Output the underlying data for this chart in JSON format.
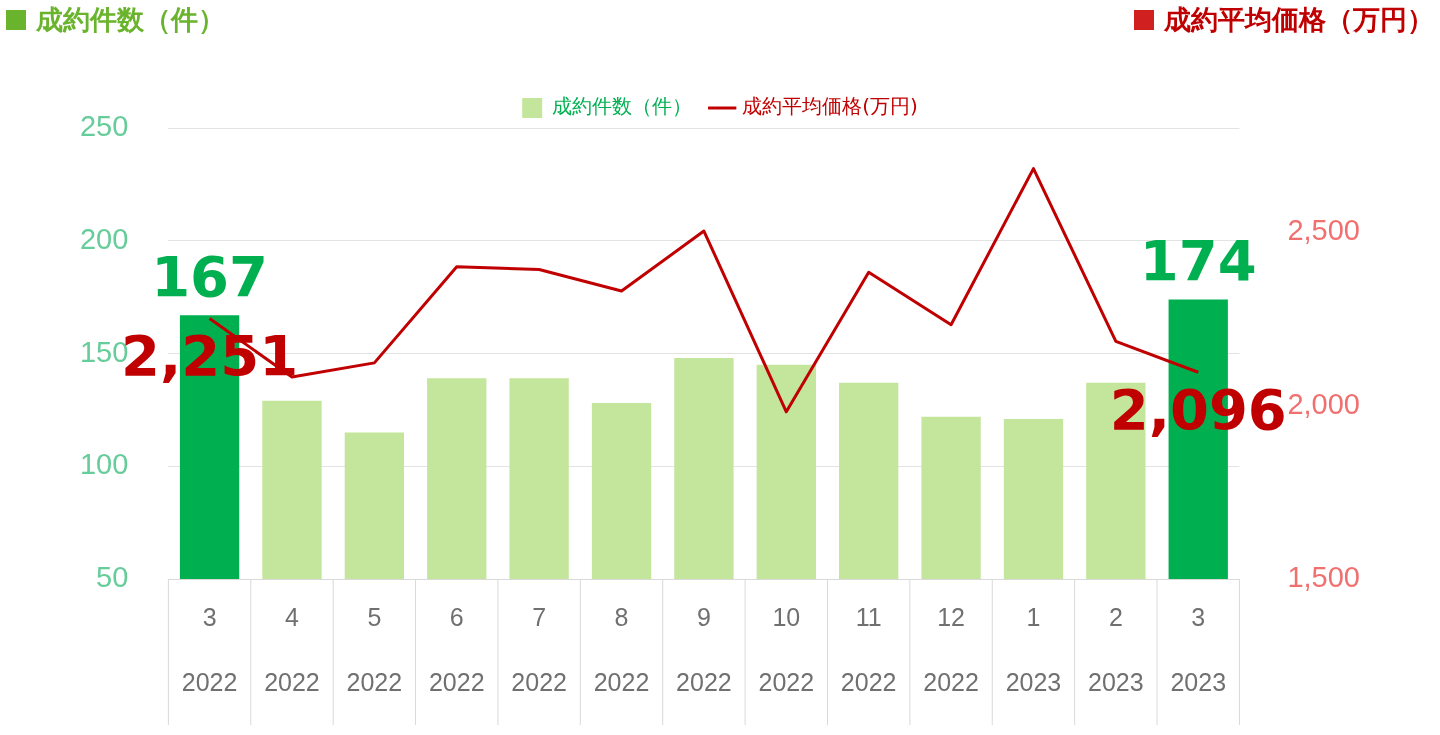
{
  "chart_data": {
    "type": "bar",
    "ylabel": "成約件数（件）",
    "y2label": "成約平均価格（万円）",
    "categories": [
      "3\n2022",
      "4\n2022",
      "5\n2022",
      "6\n2022",
      "7\n2022",
      "8\n2022",
      "9\n2022",
      "10\n2022",
      "11\n2022",
      "12\n2022",
      "1\n2023",
      "2\n2023",
      "3\n2023"
    ],
    "series": [
      {
        "name": "成約件数（件）",
        "color": "#c4e59c",
        "colors": [
          "#00b050",
          "#c4e59c",
          "#c4e59c",
          "#c4e59c",
          "#c4e59c",
          "#c4e59c",
          "#c4e59c",
          "#c4e59c",
          "#c4e59c",
          "#c4e59c",
          "#c4e59c",
          "#c4e59c",
          "#00b050"
        ],
        "values": [
          167,
          129,
          115,
          139,
          139,
          128,
          148,
          145,
          137,
          122,
          121,
          137,
          174
        ],
        "value_labels": [
          "167",
          null,
          null,
          null,
          null,
          null,
          null,
          null,
          null,
          null,
          null,
          null,
          "174"
        ]
      },
      {
        "name": "成約平均価格(万円)",
        "type": "line",
        "axis": "y2",
        "color": "#c00000",
        "values": [
          2251,
          2082,
          2123,
          2400,
          2392,
          2330,
          2503,
          1982,
          2384,
          2233,
          2683,
          2185,
          2096
        ],
        "value_labels": [
          "2,251",
          null,
          null,
          null,
          null,
          null,
          null,
          null,
          null,
          null,
          null,
          null,
          "2,096"
        ]
      }
    ],
    "ylim": [
      50,
      250
    ],
    "yticks": [
      50,
      100,
      150,
      200,
      250
    ],
    "y2lim": [
      1500,
      2800
    ],
    "y2ticks": [
      {
        "value": 1500,
        "label": "1,500"
      },
      {
        "value": 2000,
        "label": "2,000"
      },
      {
        "value": 2500,
        "label": "2,500"
      }
    ],
    "grid": "y",
    "legend": "top",
    "marker": "none"
  }
}
